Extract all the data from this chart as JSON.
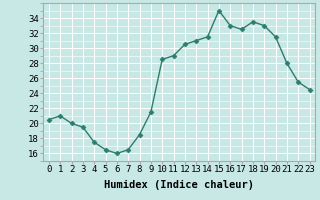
{
  "xlabel": "Humidex (Indice chaleur)",
  "ylabel": "",
  "x_values": [
    0,
    1,
    2,
    3,
    4,
    5,
    6,
    7,
    8,
    9,
    10,
    11,
    12,
    13,
    14,
    15,
    16,
    17,
    18,
    19,
    20,
    21,
    22,
    23
  ],
  "y_values": [
    20.5,
    21,
    20,
    19.5,
    17.5,
    16.5,
    16,
    16.5,
    18.5,
    21.5,
    28.5,
    29,
    30.5,
    31,
    31.5,
    35,
    33,
    32.5,
    33.5,
    33,
    31.5,
    28,
    25.5,
    24.5
  ],
  "ylim": [
    15,
    36
  ],
  "yticks": [
    16,
    18,
    20,
    22,
    24,
    26,
    28,
    30,
    32,
    34
  ],
  "xlim": [
    -0.5,
    23.5
  ],
  "xticks": [
    0,
    1,
    2,
    3,
    4,
    5,
    6,
    7,
    8,
    9,
    10,
    11,
    12,
    13,
    14,
    15,
    16,
    17,
    18,
    19,
    20,
    21,
    22,
    23
  ],
  "line_color": "#2d7d6e",
  "marker": "D",
  "marker_size": 2.5,
  "bg_color": "#c8e8e5",
  "grid_color": "#e8f5f4",
  "tick_label_fontsize": 6.5,
  "xlabel_fontsize": 7.5,
  "spine_color": "#aaaaaa"
}
